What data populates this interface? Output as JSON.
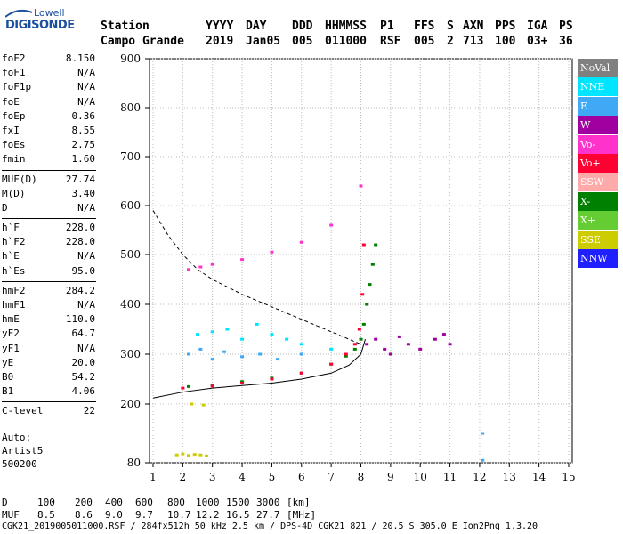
{
  "logo": {
    "brand": "Lowell",
    "product": "DIGISONDE"
  },
  "header": {
    "labels": [
      "Station",
      "YYYY",
      "DAY",
      "DDD",
      "HHMMSS",
      "P1",
      "FFS",
      "S",
      "AXN",
      "PPS",
      "IGA",
      "PS"
    ],
    "values": [
      "Campo Grande",
      "2019",
      "Jan05",
      "005",
      "011000",
      "RSF",
      "005",
      "2",
      "713",
      "100",
      "03+",
      "36"
    ]
  },
  "params": [
    [
      [
        "foF2",
        "8.150"
      ],
      [
        "foF1",
        "N/A"
      ],
      [
        "foF1p",
        "N/A"
      ],
      [
        "foE",
        "N/A"
      ],
      [
        "foEp",
        "0.36"
      ],
      [
        "fxI",
        "8.55"
      ],
      [
        "foEs",
        "2.75"
      ],
      [
        "fmin",
        "1.60"
      ]
    ],
    [
      [
        "MUF(D)",
        "27.74"
      ],
      [
        "M(D)",
        "3.40"
      ],
      [
        "D",
        "N/A"
      ]
    ],
    [
      [
        "h`F",
        "228.0"
      ],
      [
        "h`F2",
        "228.0"
      ],
      [
        "h`E",
        "N/A"
      ],
      [
        "h`Es",
        "95.0"
      ]
    ],
    [
      [
        "hmF2",
        "284.2"
      ],
      [
        "hmF1",
        "N/A"
      ],
      [
        "hmE",
        "110.0"
      ],
      [
        "yF2",
        "64.7"
      ],
      [
        "yF1",
        "N/A"
      ],
      [
        "yE",
        "20.0"
      ],
      [
        "B0",
        "54.2"
      ],
      [
        "B1",
        "4.06"
      ]
    ],
    [
      [
        "C-level",
        "22"
      ]
    ]
  ],
  "auto": [
    "Auto:",
    "Artist5",
    "500200"
  ],
  "legend": [
    {
      "label": "NoVal",
      "color": "#808080"
    },
    {
      "label": "NNE",
      "color": "#00e5ff"
    },
    {
      "label": "E",
      "color": "#3fa9f5"
    },
    {
      "label": "W",
      "color": "#a000a0"
    },
    {
      "label": "Vo-",
      "color": "#ff33cc"
    },
    {
      "label": "Vo+",
      "color": "#ff0033"
    },
    {
      "label": "SSW",
      "color": "#ffaaaa"
    },
    {
      "label": "X-",
      "color": "#008000"
    },
    {
      "label": "X+",
      "color": "#66cc33"
    },
    {
      "label": "SSE",
      "color": "#cccc00"
    },
    {
      "label": "NNW",
      "color": "#2020ff"
    }
  ],
  "chart_data": {
    "type": "scatter",
    "title": "",
    "xlabel": "",
    "ylabel": "",
    "xlim": [
      0.8,
      15
    ],
    "ylim": [
      80,
      900
    ],
    "x_ticks": [
      1,
      2,
      3,
      4,
      5,
      6,
      7,
      8,
      9,
      10,
      11,
      12,
      13,
      14,
      15
    ],
    "y_ticks": [
      80,
      200,
      300,
      400,
      500,
      600,
      700,
      800,
      900
    ],
    "grid": true,
    "series": [
      {
        "name": "X-",
        "color": "#008000",
        "x": [
          2.2,
          3.0,
          4.0,
          5.0,
          6.0,
          7.0,
          7.5,
          7.8,
          8.0,
          8.1,
          8.2,
          8.3,
          8.4,
          8.5
        ],
        "y": [
          235,
          238,
          245,
          252,
          262,
          280,
          296,
          310,
          330,
          360,
          400,
          440,
          480,
          520
        ]
      },
      {
        "name": "Vo+",
        "color": "#ff0033",
        "x": [
          2.0,
          3.0,
          4.0,
          5.0,
          6.0,
          7.0,
          7.5,
          7.8,
          7.95,
          8.05,
          8.1
        ],
        "y": [
          232,
          236,
          242,
          250,
          262,
          280,
          300,
          320,
          350,
          420,
          520
        ]
      },
      {
        "name": "W",
        "color": "#a000a0",
        "x": [
          8.2,
          8.5,
          8.8,
          9.0,
          9.3,
          9.6,
          10.0,
          10.5,
          10.8,
          11.0
        ],
        "y": [
          320,
          330,
          310,
          300,
          335,
          320,
          310,
          330,
          340,
          320
        ]
      },
      {
        "name": "NNE",
        "color": "#00e5ff",
        "x": [
          2.5,
          3.0,
          3.5,
          4.0,
          4.5,
          5.0,
          5.5,
          6.0,
          7.0
        ],
        "y": [
          340,
          345,
          350,
          330,
          360,
          340,
          330,
          320,
          310
        ]
      },
      {
        "name": "E",
        "color": "#3fa9f5",
        "x": [
          2.2,
          2.6,
          3.0,
          3.4,
          4.0,
          4.6,
          5.2,
          6.0,
          12.1,
          12.1
        ],
        "y": [
          300,
          310,
          290,
          305,
          295,
          300,
          290,
          300,
          85,
          140
        ]
      },
      {
        "name": "Vo-",
        "color": "#ff33cc",
        "x": [
          2.2,
          2.6,
          3.0,
          4.0,
          5.0,
          6.0,
          7.0,
          8.0
        ],
        "y": [
          470,
          475,
          480,
          490,
          505,
          525,
          560,
          640
        ]
      },
      {
        "name": "SSE",
        "color": "#cccc00",
        "x": [
          1.8,
          2.0,
          2.2,
          2.4,
          2.6,
          2.8,
          2.3,
          2.7
        ],
        "y": [
          96,
          98,
          95,
          97,
          96,
          94,
          200,
          198
        ]
      }
    ],
    "curves": [
      {
        "name": "profile",
        "style": "solid",
        "x": [
          1.0,
          2.0,
          3.0,
          4.0,
          5.0,
          6.0,
          7.0,
          7.6,
          8.0,
          8.15
        ],
        "y": [
          212,
          224,
          232,
          237,
          242,
          250,
          262,
          278,
          300,
          330
        ]
      },
      {
        "name": "muf",
        "style": "dashed",
        "x": [
          1.0,
          1.5,
          2.0,
          2.5,
          3.0,
          3.5,
          4.0,
          5.0,
          6.0,
          7.0,
          8.0
        ],
        "y": [
          590,
          540,
          500,
          470,
          450,
          435,
          420,
          395,
          370,
          345,
          320
        ]
      }
    ]
  },
  "footer": {
    "d_label": "D",
    "d_values": [
      "100",
      "200",
      "400",
      "600",
      "800",
      "1000",
      "1500",
      "3000",
      "[km]"
    ],
    "muf_label": "MUF",
    "muf_values": [
      "8.5",
      "8.6",
      "9.0",
      "9.7",
      "10.7",
      "12.2",
      "16.5",
      "27.7",
      "[MHz]"
    ],
    "info": "CGK21_2019005011000.RSF / 284fx512h 50 kHz 2.5 km / DPS-4D CGK21 821 / 20.5 S 305.0 E Ion2Png 1.3.20"
  }
}
